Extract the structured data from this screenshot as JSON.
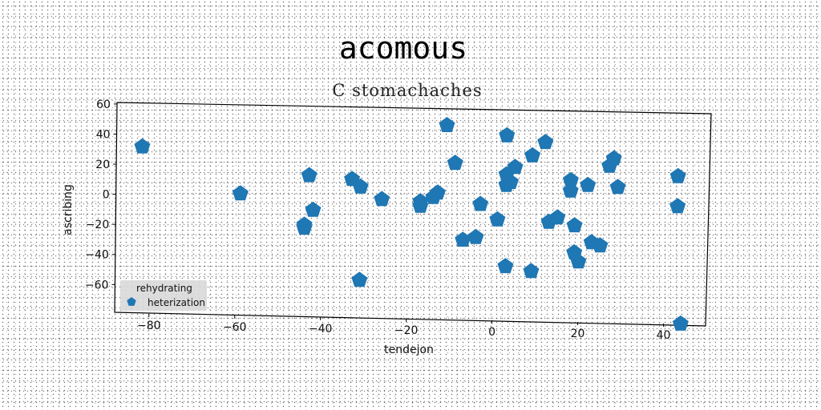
{
  "chart_data": {
    "type": "scatter",
    "title": "acomous",
    "subtitle": "C stomachaches",
    "xlabel": "tendejon",
    "ylabel": "ascribing",
    "xlim": [
      -88,
      50
    ],
    "ylim": [
      -79,
      61
    ],
    "xticks": [
      -80,
      -60,
      -40,
      -20,
      0,
      20,
      40
    ],
    "yticks": [
      -60,
      -40,
      -20,
      0,
      20,
      40,
      60
    ],
    "legend": {
      "position": "lower-left",
      "entries": [
        {
          "label": "rehydrating",
          "marker": "none"
        },
        {
          "label": "heterization",
          "marker": "pentagon"
        }
      ]
    },
    "series": [
      {
        "name": "heterization",
        "marker": "pentagon",
        "color": "#1f77b4",
        "points": [
          [
            -82,
            32
          ],
          [
            -59,
            2
          ],
          [
            -43,
            15
          ],
          [
            -42,
            -8
          ],
          [
            -44,
            -18
          ],
          [
            -44,
            -20
          ],
          [
            -33,
            13
          ],
          [
            -31,
            8
          ],
          [
            -31,
            -54
          ],
          [
            -26,
            0
          ],
          [
            -17,
            -1
          ],
          [
            -17,
            -4
          ],
          [
            -14,
            2
          ],
          [
            -13,
            5
          ],
          [
            -11,
            50
          ],
          [
            -9,
            25
          ],
          [
            -7,
            -26
          ],
          [
            -4,
            -24
          ],
          [
            -3,
            -2
          ],
          [
            1,
            -12
          ],
          [
            3,
            44
          ],
          [
            3,
            18
          ],
          [
            3,
            11
          ],
          [
            4,
            13
          ],
          [
            5,
            23
          ],
          [
            3,
            -43
          ],
          [
            9,
            31
          ],
          [
            12,
            40
          ],
          [
            9,
            -46
          ],
          [
            13,
            -13
          ],
          [
            15,
            -10
          ],
          [
            18,
            15
          ],
          [
            18,
            8
          ],
          [
            19,
            -15
          ],
          [
            19,
            -33
          ],
          [
            20,
            -39
          ],
          [
            22,
            12
          ],
          [
            23,
            -26
          ],
          [
            25,
            -28
          ],
          [
            27,
            25
          ],
          [
            28,
            30
          ],
          [
            29,
            11
          ],
          [
            43,
            19
          ],
          [
            43,
            -1
          ],
          [
            44,
            -79
          ]
        ]
      }
    ]
  }
}
